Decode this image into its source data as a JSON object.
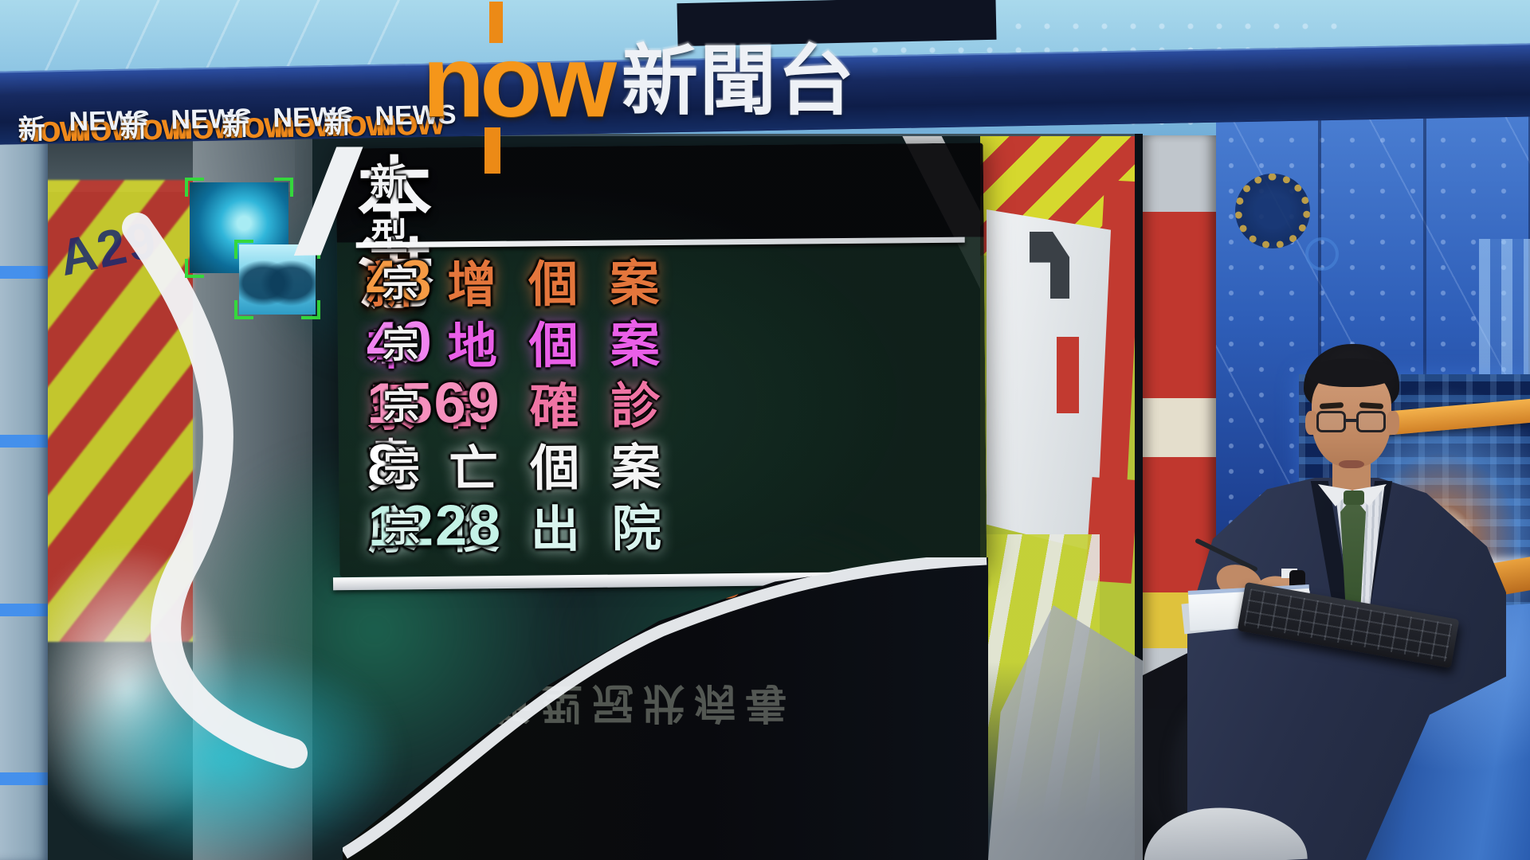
{
  "channel": {
    "brand": "now",
    "banner_items": [
      {
        "brand": "now",
        "suffix": "新聞台"
      },
      {
        "brand": "now",
        "suffix": "NEWS"
      },
      {
        "brand": "now",
        "suffix": "新聞台"
      },
      {
        "brand": "now",
        "suffix": "NEWS"
      },
      {
        "brand": "now",
        "suffix": "新聞台"
      },
      {
        "brand": "now",
        "suffix": "NEWS"
      },
      {
        "brand": "now",
        "suffix": "新聞台"
      },
      {
        "brand": "now",
        "suffix": "NEWS"
      }
    ],
    "main_logo": {
      "brand": "now",
      "suffix": "新聞台"
    }
  },
  "infoboard": {
    "title_main": "本港",
    "title_sub": "新型冠狀病毒",
    "rows": [
      {
        "label": "新增個案",
        "value": "48",
        "unit": "宗",
        "label_color": "#e4763c",
        "value_color": "#f59a44",
        "unit_color": "#f2f2f2"
      },
      {
        "label": "本地個案",
        "value": "40",
        "unit": "宗",
        "label_color": "#ea5fe8",
        "value_color": "#ef84ef",
        "unit_color": "#f2f2f2"
      },
      {
        "label": "累計確診",
        "value": "1569",
        "unit": "宗",
        "label_color": "#ef74a4",
        "value_color": "#f590bd",
        "unit_color": "#f2f2f2"
      },
      {
        "label": "死亡個案",
        "value": "8",
        "unit": "宗",
        "label_color": "#f4f4f4",
        "value_color": "#ffffff",
        "unit_color": "#f2f2f2"
      },
      {
        "label": "康復出院",
        "value": "1228",
        "unit": "宗",
        "label_color": "#d9f4ee",
        "value_color": "#c4f2e6",
        "unit_color": "#dcf2ec"
      }
    ]
  },
  "wall": {
    "ambulance_code": "A29"
  },
  "desk_reflection": {
    "rows": [
      {
        "value": "40",
        "unit": "宗",
        "color": "#9b55cc"
      },
      {
        "value": "48",
        "unit": "宗",
        "color": "#c05f2a"
      }
    ],
    "mirrored_text": "新型冠狀病毒",
    "mirrored_text_color": "#60655f"
  }
}
